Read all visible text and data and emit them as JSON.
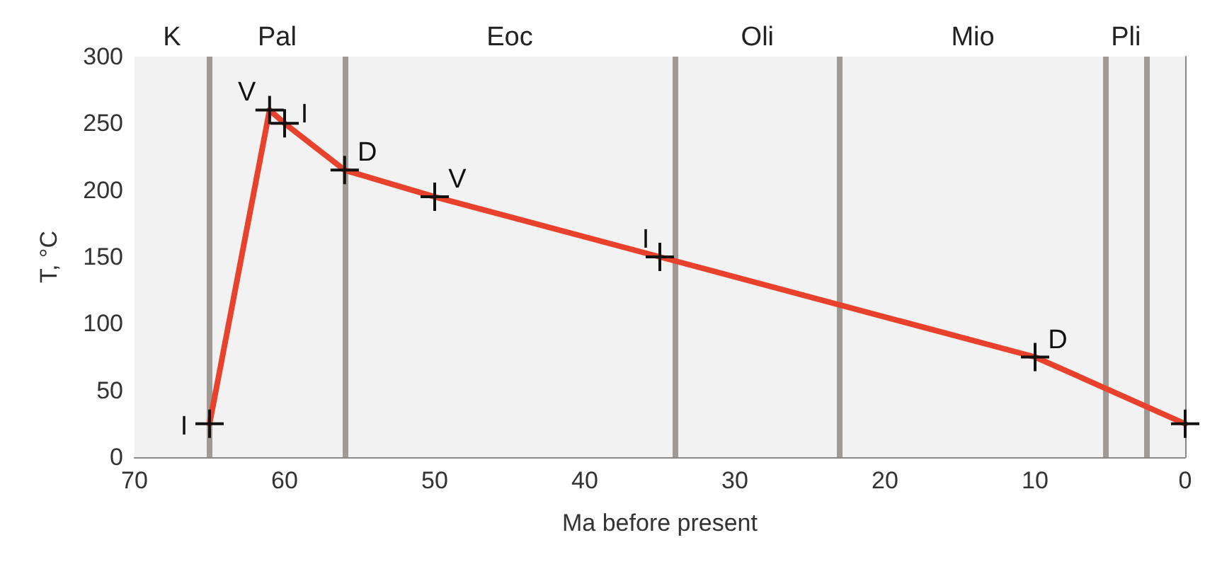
{
  "chart_data": {
    "type": "line",
    "xlabel": "Ma before present",
    "ylabel": "T, °C",
    "x": [
      65,
      61,
      60,
      56,
      50,
      35,
      10,
      0
    ],
    "series": [
      {
        "color": "#e8412c",
        "values": [
          25,
          260,
          250,
          215,
          195,
          150,
          75,
          25
        ]
      }
    ],
    "xlim": [
      70,
      0
    ],
    "xticks": [
      70,
      60,
      50,
      40,
      30,
      20,
      10,
      0
    ],
    "ylim": [
      0,
      300
    ],
    "yticks": [
      0,
      50,
      100,
      150,
      200,
      250,
      300
    ],
    "marker": "cross",
    "line_style": "solid",
    "ref_lines": [
      {
        "axis": "x",
        "value": 65,
        "color": "#a09a96"
      },
      {
        "axis": "x",
        "value": 56,
        "color": "#a09a96"
      },
      {
        "axis": "x",
        "value": 34,
        "color": "#a09a96"
      },
      {
        "axis": "x",
        "value": 23,
        "color": "#a09a96"
      },
      {
        "axis": "x",
        "value": 5.3,
        "color": "#a09a96"
      },
      {
        "axis": "x",
        "value": 2.6,
        "color": "#a09a96"
      }
    ],
    "bands": [
      {
        "axis": "x",
        "from": 70,
        "to": 65,
        "label": "K",
        "color": "#f3f2f2"
      },
      {
        "axis": "x",
        "from": 65,
        "to": 56,
        "label": "Pal",
        "color": "#f3f2f2"
      },
      {
        "axis": "x",
        "from": 56,
        "to": 34,
        "label": "Eoc",
        "color": "#f3f2f2"
      },
      {
        "axis": "x",
        "from": 34,
        "to": 23,
        "label": "Oli",
        "color": "#f3f2f2"
      },
      {
        "axis": "x",
        "from": 23,
        "to": 5.3,
        "label": "Mio",
        "color": "#f3f2f2"
      },
      {
        "axis": "x",
        "from": 5.3,
        "to": 2.6,
        "label": "Pli",
        "color": "#f3f2f2"
      },
      {
        "axis": "x",
        "from": 2.6,
        "to": 0,
        "label": null,
        "color": "#f3f2f2"
      }
    ],
    "annotations": [
      {
        "text": "I",
        "x": 65,
        "y": 25
      },
      {
        "text": "V",
        "x": 61,
        "y": 260
      },
      {
        "text": "I",
        "x": 60,
        "y": 250
      },
      {
        "text": "D",
        "x": 56,
        "y": 215
      },
      {
        "text": "V",
        "x": 50,
        "y": 195
      },
      {
        "text": "I",
        "x": 35,
        "y": 150
      },
      {
        "text": "D",
        "x": 10,
        "y": 75
      }
    ]
  }
}
